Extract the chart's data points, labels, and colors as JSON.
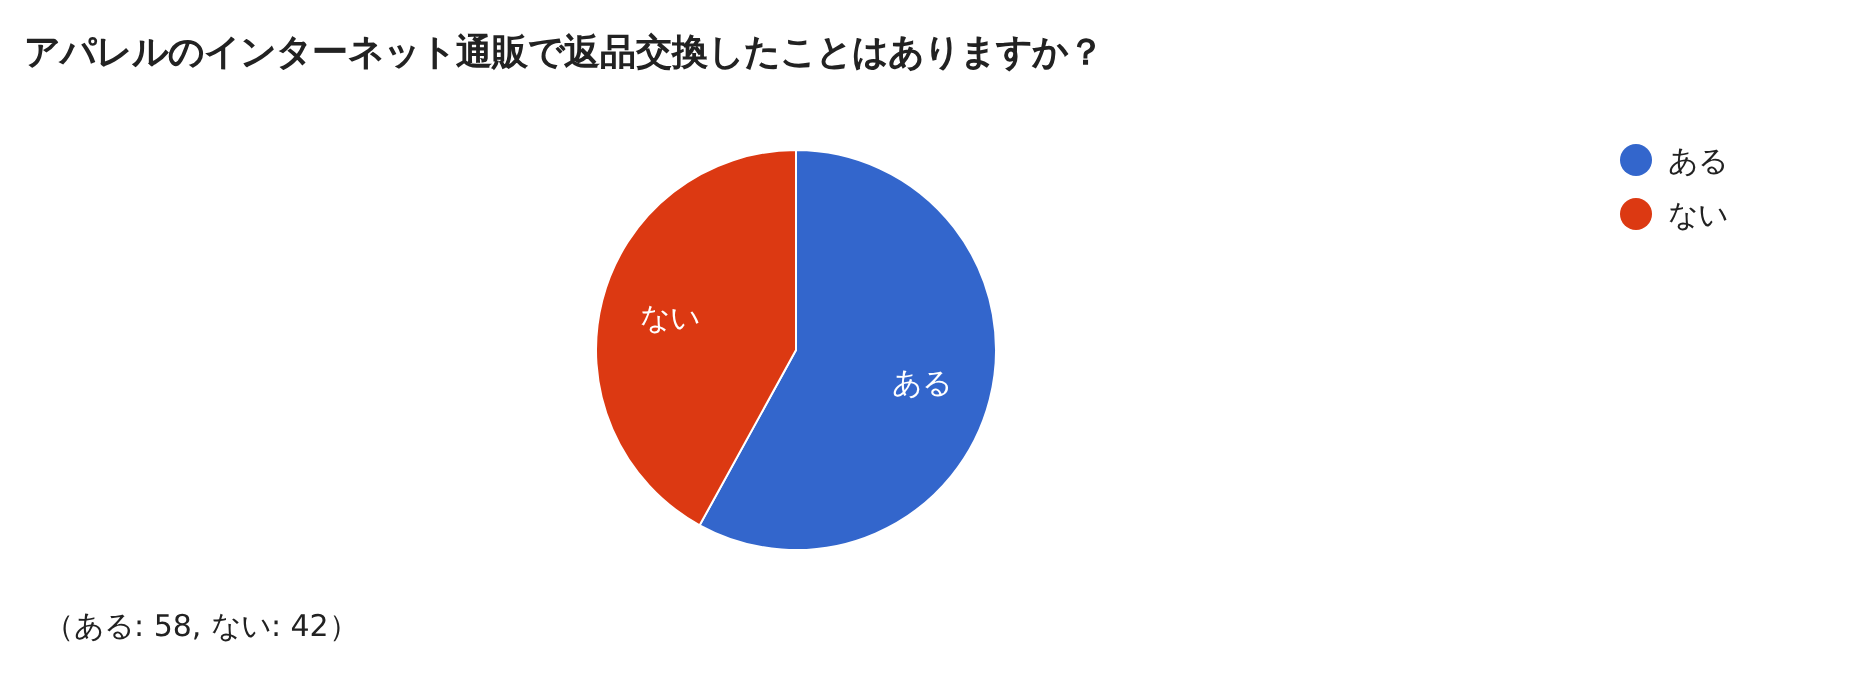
{
  "chart_data": {
    "type": "pie",
    "title": "アパレルのインターネット通販で返品交換したことはありますか？",
    "categories": [
      "ある",
      "ない"
    ],
    "values": [
      58,
      42
    ],
    "colors": [
      "#3366cc",
      "#dc3912"
    ],
    "legend": "top right",
    "annotations": [
      "（ある: 58, ない: 42）"
    ]
  }
}
